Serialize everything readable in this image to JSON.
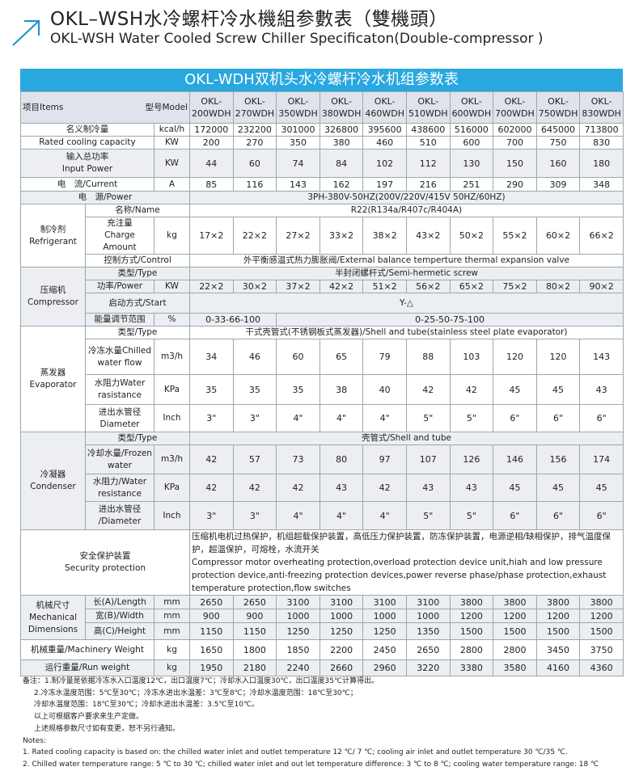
{
  "header": {
    "title_cn": "OKL–WSH水冷螺杆冷水機組参數表（雙機頭）",
    "title_en": "OKL-WSH Water Cooled Screw Chiller Specificaton(Double-compressor )"
  },
  "table": {
    "title": "OKL-WDH双机头水冷螺杆冷水机组参数表",
    "items_label": "项目Items",
    "model_label": "型号Model",
    "models": [
      [
        "OKL-",
        "200WDH"
      ],
      [
        "OKL-",
        "270WDH"
      ],
      [
        "OKL-",
        "350WDH"
      ],
      [
        "OKL-",
        "380WDH"
      ],
      [
        "OKL-",
        "460WDH"
      ],
      [
        "OKL-",
        "510WDH"
      ],
      [
        "OKL-",
        "600WDH"
      ],
      [
        "OKL-",
        "700WDH"
      ],
      [
        "OKL-",
        "750WDH"
      ],
      [
        "OKL-",
        "830WDH"
      ]
    ],
    "sections": [
      {
        "rows": [
          {
            "label": "名义制冷量",
            "unit": "kcal/h",
            "values": [
              172000,
              232200,
              301000,
              326800,
              395600,
              438600,
              516000,
              602000,
              645000,
              713800
            ]
          },
          {
            "label": "Rated cooling capacity",
            "unit": "KW",
            "values": [
              200,
              270,
              350,
              380,
              460,
              510,
              600,
              700,
              750,
              830
            ]
          }
        ]
      },
      {
        "rows": [
          {
            "label": [
              "输入总功率",
              "Input Power"
            ],
            "unit": "KW",
            "values": [
              44,
              60,
              74,
              84,
              102,
              112,
              130,
              150,
              160,
              180
            ]
          }
        ]
      },
      {
        "rows": [
          {
            "label": "电　流/Current",
            "unit": "A",
            "values": [
              85,
              116,
              143,
              162,
              197,
              216,
              251,
              290,
              309,
              348
            ]
          }
        ]
      },
      {
        "rows": [
          {
            "label": "电　源/Power",
            "span": "3PH-380V-50HZ(200V/220V/415V  50HZ/60HZ)"
          }
        ]
      },
      {
        "group": [
          "制冷剂",
          "Refrigerant"
        ],
        "rows": [
          {
            "label": "名称/Name",
            "span": "R22(R134a/R407c/R404A)"
          },
          {
            "label": [
              "充注量",
              "Charge Amount"
            ],
            "unit": "kg",
            "values": [
              "17×2",
              "22×2",
              "27×2",
              "33×2",
              "38×2",
              "43×2",
              "50×2",
              "55×2",
              "60×2",
              "66×2"
            ]
          },
          {
            "label": "控制方式/Control",
            "span": "外平衡感温式热力膨胀阀/External balance temperture thermal expansion valve"
          }
        ]
      },
      {
        "group": [
          "压缩机",
          "Compressor"
        ],
        "rows": [
          {
            "label": "类型/Type",
            "span": "半封闭螺杆式/Semi-hermetic screw"
          },
          {
            "label": "功率/Power",
            "unit": "KW",
            "values": [
              "22×2",
              "30×2",
              "37×2",
              "42×2",
              "51×2",
              "56×2",
              "65×2",
              "75×2",
              "80×2",
              "90×2"
            ]
          },
          {
            "label": "启动方式/Start",
            "span": "Y-△"
          },
          {
            "label": "能量调节范围",
            "unit": "%",
            "ranges": [
              "0-33-66-100",
              "0-25-50-75-100"
            ]
          }
        ]
      },
      {
        "group": [
          "蒸发器",
          "Evaporator"
        ],
        "rows": [
          {
            "label": "类型/Type",
            "span": "干式壳管式(不锈钢板式蒸发器)/Shell and tube(stainless steel plate evaporator)"
          },
          {
            "label": "冷冻水量Chilled water flow",
            "unit": "m3/h",
            "values": [
              34,
              46,
              60,
              65,
              79,
              88,
              103,
              120,
              120,
              143
            ]
          },
          {
            "label": "水阻力Water rasistance",
            "unit": "KPa",
            "values": [
              35,
              35,
              35,
              38,
              40,
              42,
              42,
              45,
              45,
              43
            ]
          },
          {
            "label": [
              "进出水管径",
              "Diameter"
            ],
            "unit": "Inch",
            "values": [
              "3\"",
              "3\"",
              "4\"",
              "4\"",
              "4\"",
              "5\"",
              "5\"",
              "6\"",
              "6\"",
              "6\""
            ]
          }
        ]
      },
      {
        "group": [
          "冷凝器",
          "Condenser"
        ],
        "rows": [
          {
            "label": "类型/Type",
            "span": "壳管式/Shell and tube"
          },
          {
            "label": "冷却水量/Frozen water",
            "unit": "m3/h",
            "values": [
              42,
              57,
              73,
              80,
              97,
              107,
              126,
              146,
              156,
              174
            ]
          },
          {
            "label": "水阻力/Water resistance",
            "unit": "KPa",
            "values": [
              42,
              42,
              42,
              43,
              42,
              43,
              43,
              45,
              45,
              45
            ]
          },
          {
            "label": [
              "进出水管径",
              "/Diameter"
            ],
            "unit": "Inch",
            "values": [
              "3\"",
              "3\"",
              "4\"",
              "4\"",
              "4\"",
              "5\"",
              "5\"",
              "6\"",
              "6\"",
              "6\""
            ]
          }
        ]
      },
      {
        "rows": [
          {
            "label": [
              "安全保护装置",
              "Security protection"
            ],
            "span": [
              "压缩机电机过热保护，机组超载保护装置，高低压力保护装置，防冻保护装置，电源逆相/缺相保护，排气温度保护，超温保护，可熔栓，水流开关",
              "Compressor motor overheating protection,overload protection device unit,hiah and low pressure protection device,anti-freezing protection devices,power reverse phase/phase protection,exhaust temperature protection,flow switches"
            ]
          }
        ]
      },
      {
        "group": [
          "机械尺寸",
          "Mechanical",
          "Dimensions"
        ],
        "rows": [
          {
            "label": "长(A)/Length",
            "unit": "mm",
            "values": [
              2650,
              2650,
              3100,
              3100,
              3100,
              3100,
              3800,
              3800,
              3800,
              3800
            ]
          },
          {
            "label": "宽(B)/Width",
            "unit": "mm",
            "values": [
              900,
              900,
              1000,
              1000,
              1000,
              1000,
              1200,
              1200,
              1200,
              1200
            ]
          },
          {
            "label": "高(C)/Height",
            "unit": "mm",
            "values": [
              1150,
              1150,
              1250,
              1250,
              1250,
              1350,
              1500,
              1500,
              1500,
              1500
            ]
          }
        ]
      },
      {
        "rows": [
          {
            "label": "机械重量/Machinery Weight",
            "unit": "kg",
            "values": [
              1650,
              1800,
              1850,
              2200,
              2450,
              2650,
              2800,
              2800,
              3450,
              3750
            ]
          }
        ]
      },
      {
        "rows": [
          {
            "label": "运行重量/Run weight",
            "unit": "kg",
            "values": [
              1950,
              2180,
              2240,
              2660,
              2960,
              3220,
              3380,
              3580,
              4160,
              4360
            ]
          }
        ]
      }
    ]
  },
  "notes": {
    "cn": [
      "备注：1.制冷量是依据冷冻水入口温度12℃，出口温度7℃；冷却水入口温度30℃，出口温度35℃计算得出。",
      "2.冷冻水温度范围：5℃至30℃；冷冻水进出水温差：3℃至8℃；冷却水温度范围：18℃至30℃；",
      "冷却水温度范围：18℃至30℃；冷却水进出水温差：3.5℃至10℃。",
      "以上可根据客户要求来生产定做。",
      "上述规格参数尺寸如有变更，恕不另行通知。"
    ],
    "en": [
      "Notes:",
      "1. Rated cooling capacity is based on: the chilled water inlet and outlet temperature 12 ℃/ 7 ℃; cooling air inlet and outlet temperature 30 ℃/35 ℃.",
      "2. Chilled water temperature range: 5 ℃ to 30 ℃; chilled water inlet and out let temperature difference: 3 ℃ to 8 ℃; cooling water temperature range: 18 ℃"
    ]
  }
}
